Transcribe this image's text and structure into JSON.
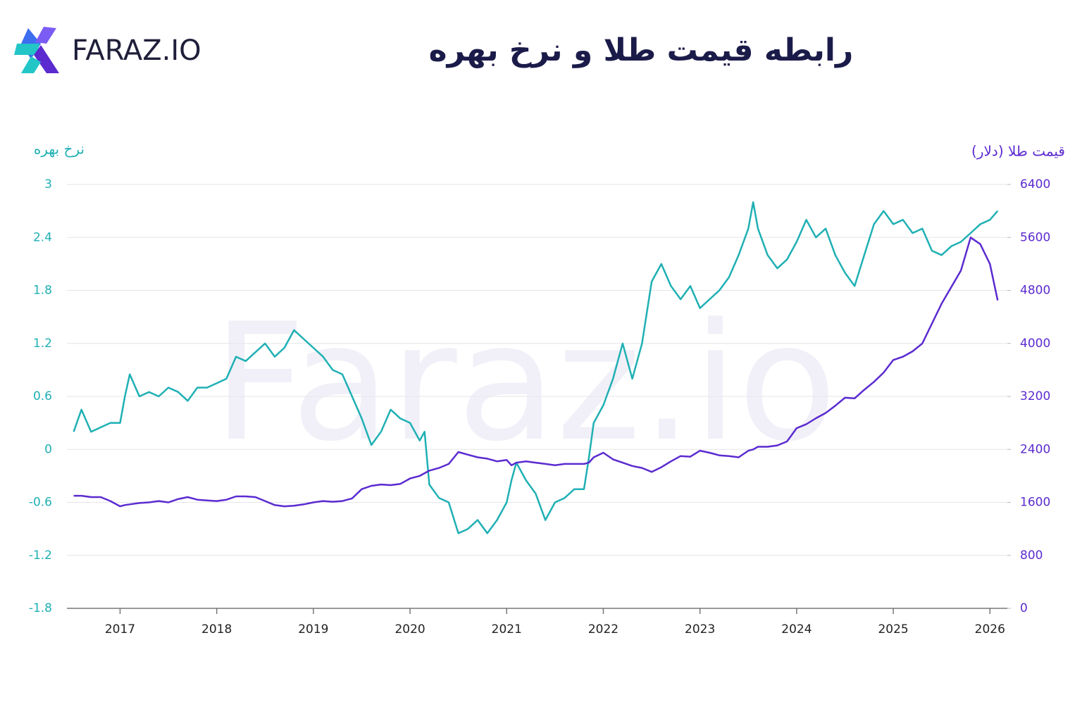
{
  "brand": "FARAZ.IO",
  "chart_data": {
    "type": "line",
    "title": "رابطه قیمت طلا و نرخ بهره",
    "watermark": "Faraz.io",
    "y_label": "نرخ بهره",
    "y2_label": "قیمت طلا (دلار)",
    "xlim": [
      2016.45,
      2026.18
    ],
    "xticks": [
      2017,
      2018,
      2019,
      2020,
      2021,
      2022,
      2023,
      2024,
      2025,
      2026
    ],
    "ylim": [
      -1.8,
      3
    ],
    "yticks": [
      -1.8,
      -1.2,
      -0.6,
      0,
      0.6,
      1.2,
      1.8,
      2.4,
      3
    ],
    "y2lim": [
      0,
      6400
    ],
    "y2ticks": [
      0,
      800,
      1600,
      2400,
      3200,
      4000,
      4800,
      5600,
      6400
    ],
    "grid": true,
    "x": [
      2016.52,
      2016.6,
      2016.7,
      2016.8,
      2016.9,
      2017.0,
      2017.05,
      2017.1,
      2017.2,
      2017.3,
      2017.4,
      2017.5,
      2017.6,
      2017.7,
      2017.8,
      2017.9,
      2018.0,
      2018.1,
      2018.2,
      2018.3,
      2018.4,
      2018.5,
      2018.6,
      2018.7,
      2018.8,
      2018.9,
      2019.0,
      2019.1,
      2019.2,
      2019.3,
      2019.4,
      2019.5,
      2019.6,
      2019.7,
      2019.8,
      2019.9,
      2020.0,
      2020.1,
      2020.15,
      2020.2,
      2020.3,
      2020.4,
      2020.5,
      2020.6,
      2020.7,
      2020.8,
      2020.9,
      2021.0,
      2021.05,
      2021.1,
      2021.2,
      2021.3,
      2021.4,
      2021.5,
      2021.6,
      2021.7,
      2021.8,
      2021.85,
      2021.9,
      2022.0,
      2022.1,
      2022.2,
      2022.3,
      2022.4,
      2022.5,
      2022.6,
      2022.7,
      2022.8,
      2022.9,
      2023.0,
      2023.1,
      2023.2,
      2023.3,
      2023.4,
      2023.5,
      2023.55,
      2023.6,
      2023.7,
      2023.8,
      2023.9,
      2024.0,
      2024.1,
      2024.2,
      2024.3,
      2024.4,
      2024.5,
      2024.6,
      2024.7,
      2024.8,
      2024.9,
      2025.0,
      2025.1,
      2025.2,
      2025.3,
      2025.4,
      2025.5,
      2025.6,
      2025.7,
      2025.8,
      2025.9,
      2026.0,
      2026.08
    ],
    "series": [
      {
        "name": "نرخ بهره",
        "color": "#1fb0b4",
        "axis": "y",
        "values": [
          0.2,
          0.45,
          0.2,
          0.25,
          0.3,
          0.3,
          0.6,
          0.85,
          0.6,
          0.65,
          0.6,
          0.7,
          0.65,
          0.55,
          0.7,
          0.7,
          0.75,
          0.8,
          1.05,
          1.0,
          1.1,
          1.2,
          1.05,
          1.15,
          1.35,
          1.25,
          1.15,
          1.05,
          0.9,
          0.85,
          0.6,
          0.35,
          0.05,
          0.2,
          0.45,
          0.35,
          0.3,
          0.1,
          0.2,
          -0.4,
          -0.55,
          -0.6,
          -0.95,
          -0.9,
          -0.8,
          -0.95,
          -0.8,
          -0.6,
          -0.35,
          -0.15,
          -0.35,
          -0.5,
          -0.8,
          -0.6,
          -0.55,
          -0.45,
          -0.45,
          -0.1,
          0.3,
          0.5,
          0.8,
          1.2,
          0.8,
          1.2,
          1.9,
          2.1,
          1.85,
          1.7,
          1.85,
          1.6,
          1.7,
          1.8,
          1.95,
          2.2,
          2.5,
          2.8,
          2.5,
          2.2,
          2.05,
          2.15,
          2.35,
          2.6,
          2.4,
          2.5,
          2.2,
          2.0,
          1.85,
          2.2,
          2.55,
          2.7,
          2.55,
          2.6,
          2.45,
          2.5,
          2.25,
          2.2,
          2.3,
          2.35,
          2.45,
          2.55,
          2.6,
          2.7
        ]
      },
      {
        "name": "قیمت طلا (دلار)",
        "color": "#5b2bd0",
        "axis": "y2",
        "values": [
          1700,
          1700,
          1680,
          1680,
          1620,
          1540,
          1560,
          1570,
          1590,
          1600,
          1620,
          1600,
          1650,
          1680,
          1640,
          1630,
          1620,
          1640,
          1690,
          1690,
          1680,
          1620,
          1560,
          1540,
          1550,
          1570,
          1600,
          1620,
          1610,
          1620,
          1660,
          1800,
          1850,
          1870,
          1860,
          1880,
          1960,
          2000,
          2040,
          2080,
          2120,
          2180,
          2360,
          2320,
          2280,
          2260,
          2220,
          2240,
          2160,
          2200,
          2220,
          2200,
          2180,
          2160,
          2180,
          2180,
          2180,
          2200,
          2280,
          2350,
          2250,
          2200,
          2150,
          2120,
          2060,
          2130,
          2220,
          2300,
          2290,
          2380,
          2350,
          2310,
          2300,
          2280,
          2380,
          2400,
          2440,
          2440,
          2460,
          2520,
          2720,
          2780,
          2870,
          2950,
          3060,
          3180,
          3170,
          3300,
          3420,
          3560,
          3750,
          3800,
          3880,
          4000,
          4300,
          4600,
          4850,
          5100,
          5600,
          5500,
          5200,
          4650
        ]
      }
    ]
  }
}
